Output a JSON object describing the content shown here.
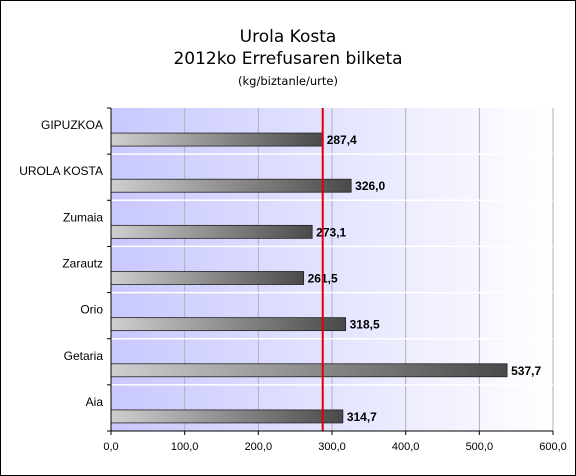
{
  "chart_data": {
    "type": "bar",
    "orientation": "horizontal",
    "title": "Urola Kosta",
    "subtitle": "2012ko Errefusaren bilketa",
    "unit_label": "(kg/biztanle/urte)",
    "categories": [
      "GIPUZKOA",
      "UROLA KOSTA",
      "Zumaia",
      "Zarautz",
      "Orio",
      "Getaria",
      "Aia"
    ],
    "values": [
      287.4,
      326.0,
      273.1,
      261.5,
      318.5,
      537.7,
      314.7
    ],
    "value_labels": [
      "287,4",
      "326,0",
      "273,1",
      "261,5",
      "318,5",
      "537,7",
      "314,7"
    ],
    "xlim": [
      0,
      600
    ],
    "xticks": [
      0,
      100,
      200,
      300,
      400,
      500,
      600
    ],
    "xtick_labels": [
      "0,0",
      "100,0",
      "200,0",
      "300,0",
      "400,0",
      "500,0",
      "600,0"
    ],
    "reference_line": 287.4,
    "grid": true,
    "legend": "none",
    "colors": {
      "bar_light": "#cfcfcf",
      "bar_dark": "#4a4a4a",
      "plot_bg_left": "#c8c8ff",
      "plot_bg_right": "#ffffff",
      "reference_line": "#dd0000"
    }
  }
}
